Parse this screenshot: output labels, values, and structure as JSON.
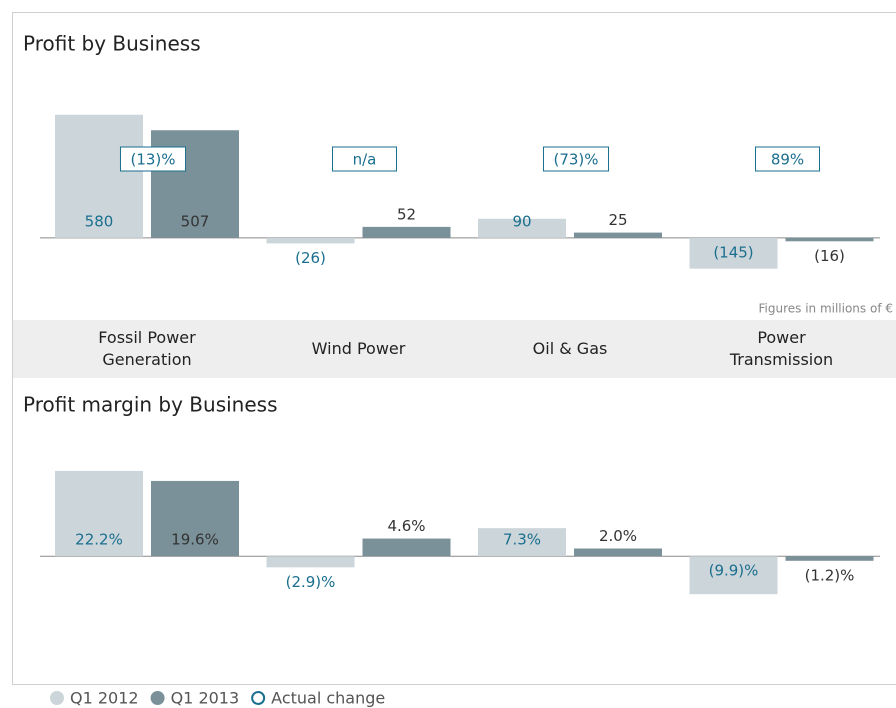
{
  "chart_data": [
    {
      "type": "bar",
      "title": "Profit by Business",
      "categories": [
        "Fossil Power Generation",
        "Wind Power",
        "Oil & Gas",
        "Power Transmission"
      ],
      "series": [
        {
          "name": "Q1 2012",
          "color": "#ccd6da",
          "values": [
            580,
            -26,
            90,
            -145
          ],
          "value_labels": [
            "580",
            "(26)",
            "90",
            "(145)"
          ]
        },
        {
          "name": "Q1 2013",
          "color": "#7b9199",
          "values": [
            507,
            52,
            25,
            -16
          ],
          "value_labels": [
            "507",
            "52",
            "25",
            "(16)"
          ]
        }
      ],
      "changes": {
        "name": "Actual change",
        "labels": [
          "(13)%",
          "n/a",
          "(73)%",
          "89%"
        ]
      },
      "note": "Figures in millions of €",
      "ylim": [
        -250,
        800
      ]
    },
    {
      "type": "bar",
      "title": "Profit margin by Business",
      "series": [
        {
          "color": "#ccd6da",
          "values": [
            22.2,
            -2.9,
            7.3,
            -9.9
          ],
          "value_labels": [
            "22.2%",
            "(2.9)%",
            "7.3%",
            "(9.9)%"
          ]
        },
        {
          "color": "#7b9199",
          "values": [
            19.6,
            4.6,
            2.0,
            -1.2
          ],
          "value_labels": [
            "19.6%",
            "4.6%",
            "2.0%",
            "(1.2)%"
          ]
        }
      ],
      "ylim": [
        -20,
        30
      ]
    }
  ]
}
